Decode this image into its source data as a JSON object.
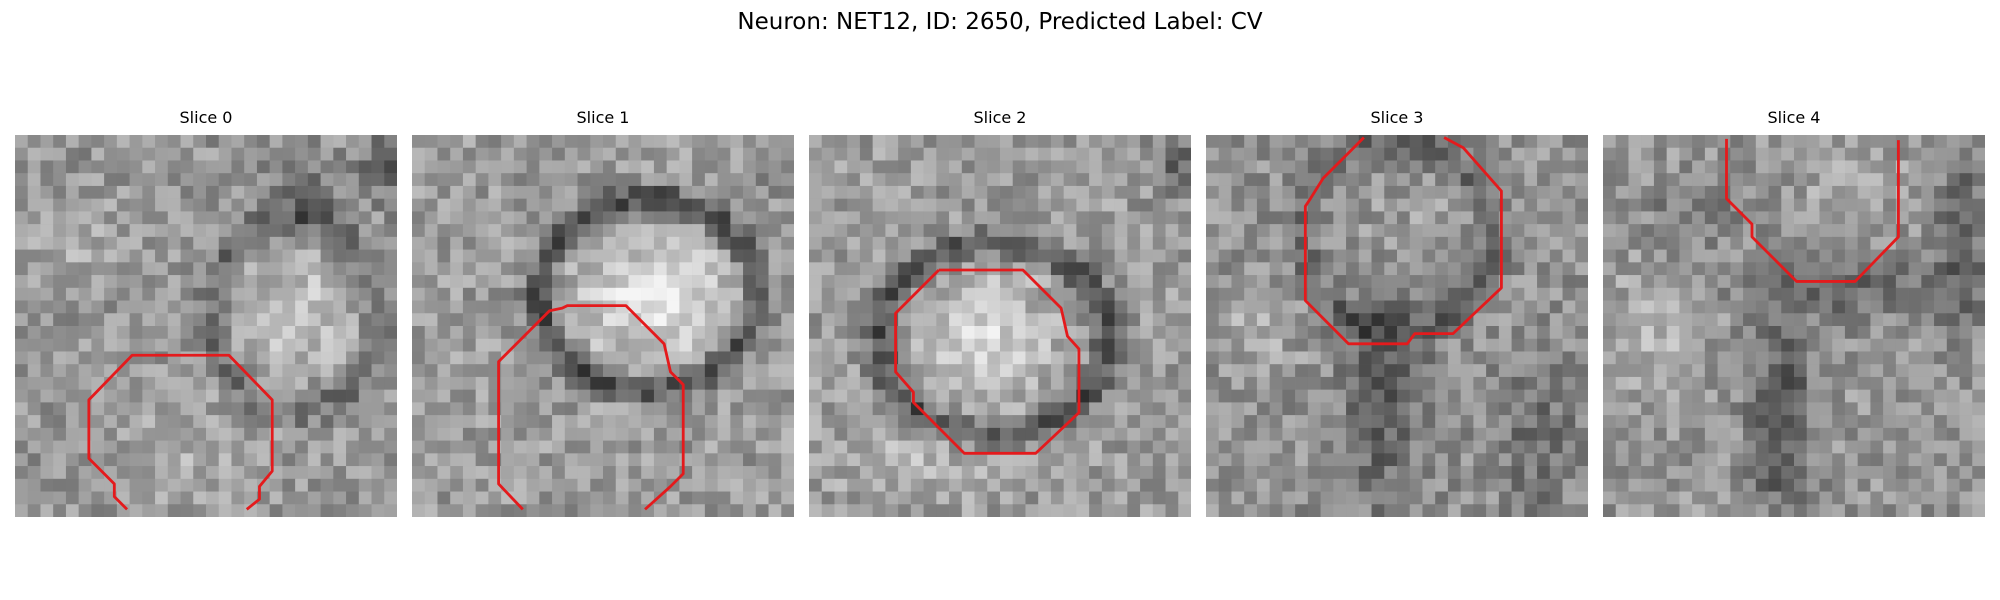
{
  "figure": {
    "title": "Neuron: NET12, ID: 2650, Predicted Label: CV"
  },
  "colors": {
    "contour": "#e41a1c",
    "background": "#ffffff"
  },
  "slices": [
    {
      "title": "Slice 0"
    },
    {
      "title": "Slice 1"
    },
    {
      "title": "Slice 2"
    },
    {
      "title": "Slice 3"
    },
    {
      "title": "Slice 4"
    }
  ]
}
